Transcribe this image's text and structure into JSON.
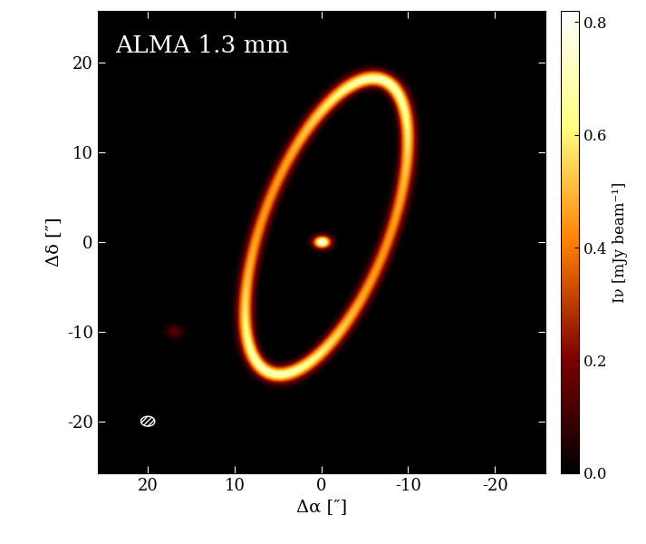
{
  "chart_data": {
    "type": "image",
    "annotation": "ALMA 1.3 mm",
    "x_label": "Δα [″]",
    "y_label": "Δδ [″]",
    "colorbar_label": "Iν [mJy beam⁻¹]",
    "xlim": [
      25.8,
      -25.8
    ],
    "ylim": [
      -25.8,
      25.8
    ],
    "xticks": [
      20,
      10,
      0,
      -10,
      -20
    ],
    "yticks": [
      -20,
      -10,
      0,
      10,
      20
    ],
    "colorbar_range": [
      0.0,
      0.82
    ],
    "colorbar_ticks": [
      0.0,
      0.2,
      0.4,
      0.6,
      0.8
    ],
    "color": "afmhot",
    "ring": {
      "center": [
        -0.5,
        1.75
      ],
      "semi_major": 17.6,
      "semi_minor": 7.2,
      "position_angle": 338,
      "width": 1.4,
      "ansa_intensity": 0.72,
      "side_intensity": 0.45
    },
    "sources": [
      {
        "x": 0.0,
        "y": 0.0,
        "intensity": 0.82
      },
      {
        "x": 17.0,
        "y": -10.0,
        "intensity": 0.15
      }
    ],
    "beam": {
      "x": 20.0,
      "y": -20.0,
      "major": 1.6,
      "minor": 1.1,
      "position_angle": 90
    }
  }
}
